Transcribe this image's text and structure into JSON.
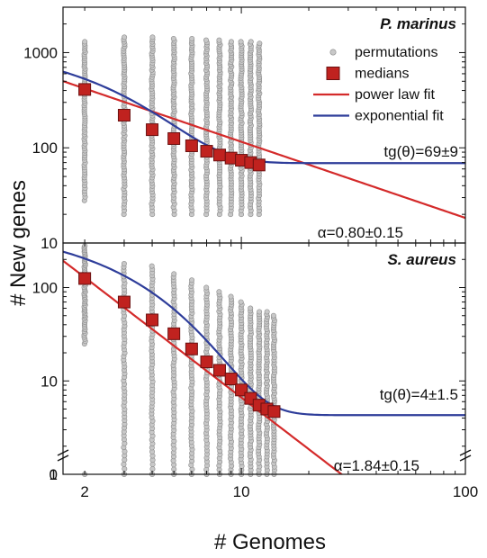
{
  "figure": {
    "ylabel": "# New genes",
    "xlabel": "# Genomes",
    "legend": {
      "position": "top-right",
      "items": [
        {
          "label": "permutations",
          "kind": "dot",
          "color": "#bdbdbd"
        },
        {
          "label": "medians",
          "kind": "square",
          "color": "#c0221f"
        },
        {
          "label": "power law fit",
          "kind": "line",
          "color": "#d42a2a"
        },
        {
          "label": "exponential fit",
          "kind": "line",
          "color": "#2e3d9a"
        }
      ]
    }
  },
  "chart_data": [
    {
      "type": "scatter",
      "title": "P. marinus",
      "x_scale": "log",
      "y_scale": "log",
      "xlim": [
        1.6,
        100
      ],
      "ylim": [
        10,
        3000
      ],
      "x_ticks": [
        2,
        10,
        100
      ],
      "y_ticks": [
        10,
        100,
        1000
      ],
      "grid": false,
      "annotations": {
        "exponential": "tg(θ)=69±9",
        "power": "α=0.80±0.15"
      },
      "series": [
        {
          "name": "medians",
          "x": [
            2,
            3,
            4,
            5,
            6,
            7,
            8,
            9,
            10,
            11,
            12
          ],
          "y": [
            410,
            220,
            155,
            125,
            105,
            92,
            84,
            78,
            74,
            70,
            66
          ]
        },
        {
          "name": "power law fit",
          "a": 730,
          "alpha": 0.8
        },
        {
          "name": "exponential fit",
          "A": 460,
          "tau": 2.0,
          "theta": 69
        },
        {
          "name": "permutations",
          "ranges": [
            {
              "x": 2,
              "min": 28,
              "max": 1300
            },
            {
              "x": 3,
              "min": 20,
              "max": 1450
            },
            {
              "x": 4,
              "min": 20,
              "max": 1450
            },
            {
              "x": 5,
              "min": 20,
              "max": 1400
            },
            {
              "x": 6,
              "min": 20,
              "max": 1400
            },
            {
              "x": 7,
              "min": 20,
              "max": 1350
            },
            {
              "x": 8,
              "min": 20,
              "max": 1350
            },
            {
              "x": 9,
              "min": 20,
              "max": 1300
            },
            {
              "x": 10,
              "min": 20,
              "max": 1300
            },
            {
              "x": 11,
              "min": 20,
              "max": 1300
            },
            {
              "x": 12,
              "min": 20,
              "max": 1250
            }
          ]
        }
      ]
    },
    {
      "type": "scatter",
      "title": "S. aureus",
      "x_scale": "log",
      "y_scale": "log",
      "xlim": [
        1.6,
        100
      ],
      "ylim": [
        1,
        300
      ],
      "x_ticks": [
        2,
        10,
        100
      ],
      "y_ticks": [
        1,
        10,
        100
      ],
      "y_break_tick": 0,
      "grid": false,
      "annotations": {
        "exponential": "tg(θ)=4±1.5",
        "power": "α=1.84±0.15"
      },
      "series": [
        {
          "name": "medians",
          "x": [
            2,
            3,
            4,
            5,
            6,
            7,
            8,
            9,
            10,
            11,
            12,
            13,
            14
          ],
          "y": [
            125,
            70,
            45,
            32,
            22,
            16,
            13,
            10.5,
            8,
            6.5,
            5.5,
            5,
            4.7
          ]
        },
        {
          "name": "power law fit",
          "a": 460,
          "alpha": 1.84
        },
        {
          "name": "exponential fit",
          "A": 200,
          "tau": 2.3,
          "theta": 4.3
        },
        {
          "name": "permutations",
          "ranges": [
            {
              "x": 2,
              "min": 25,
              "max": 280
            },
            {
              "x": 3,
              "min": 1,
              "max": 180
            },
            {
              "x": 4,
              "min": 1,
              "max": 170
            },
            {
              "x": 5,
              "min": 1,
              "max": 140
            },
            {
              "x": 6,
              "min": 1,
              "max": 120
            },
            {
              "x": 7,
              "min": 1,
              "max": 100
            },
            {
              "x": 8,
              "min": 1,
              "max": 90
            },
            {
              "x": 9,
              "min": 1,
              "max": 80
            },
            {
              "x": 10,
              "min": 1,
              "max": 70
            },
            {
              "x": 11,
              "min": 1,
              "max": 60
            },
            {
              "x": 12,
              "min": 1,
              "max": 55
            },
            {
              "x": 13,
              "min": 1,
              "max": 55
            },
            {
              "x": 14,
              "min": 1,
              "max": 50
            }
          ]
        }
      ]
    }
  ]
}
